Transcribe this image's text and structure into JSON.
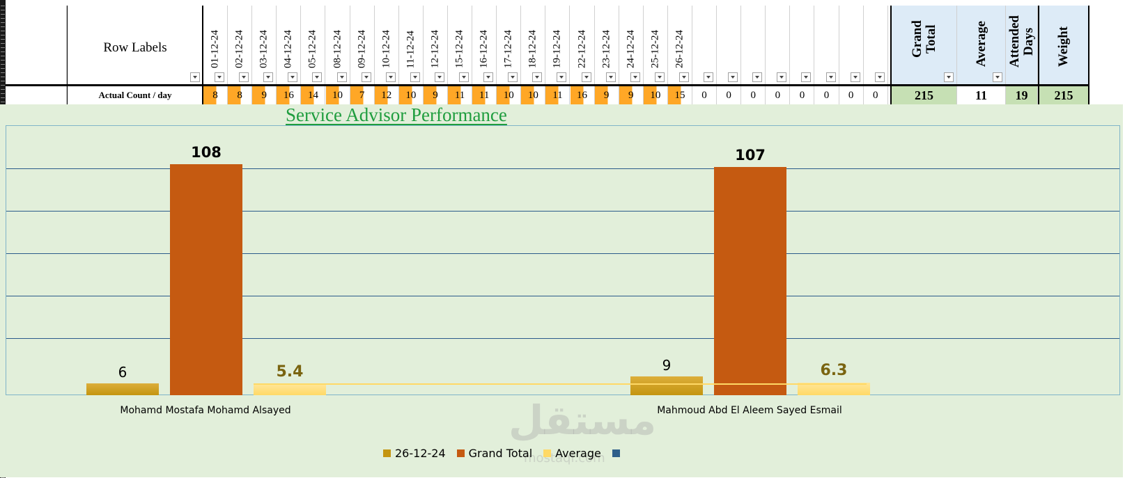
{
  "pivot": {
    "row_labels_title": "Row Labels",
    "dates": [
      "01-12-24",
      "02-12-24",
      "03-12-24",
      "04-12-24",
      "05-12-24",
      "08-12-24",
      "09-12-24",
      "10-12-24",
      "11-12-24",
      "12-12-24",
      "15-12-24",
      "16-12-24",
      "17-12-24",
      "18-12-24",
      "19-12-24",
      "22-12-24",
      "23-12-24",
      "24-12-24",
      "25-12-24",
      "26-12-24"
    ],
    "empty_columns": 8,
    "summary_headers": {
      "grand_total": "Grand Total",
      "average": "Average",
      "attended_days": "Attended Days",
      "weight": "Weight"
    },
    "row": {
      "label": "Actual Count / day",
      "values": [
        "8",
        "8",
        "9",
        "16",
        "14",
        "10",
        "7",
        "12",
        "10",
        "9",
        "11",
        "11",
        "10",
        "10",
        "11",
        "16",
        "9",
        "9",
        "10",
        "15"
      ],
      "empty_values": [
        "0",
        "0",
        "0",
        "0",
        "0",
        "0",
        "0",
        "0"
      ],
      "grand_total": "215",
      "average": "11",
      "attended_days": "19",
      "weight": "215"
    },
    "colors": {
      "highlight": "#ffa726",
      "total": "#c6e0b4",
      "header": "#ddebf7"
    }
  },
  "chart_data": {
    "type": "bar",
    "title": "Service Advisor Performance",
    "categories": [
      "Mohamd Mostafa Mohamd Alsayed",
      "Mahmoud Abd El Aleem Sayed Esmail"
    ],
    "series": [
      {
        "name": "26-12-24",
        "values": [
          6,
          9
        ],
        "color": "#d4a017"
      },
      {
        "name": "Grand Total",
        "values": [
          108,
          107
        ],
        "color": "#c55a11"
      },
      {
        "name": "Average",
        "values": [
          5.4,
          6.3
        ],
        "color": "#ffd966"
      }
    ],
    "value_labels": {
      "26-12-24": [
        "6",
        "9"
      ],
      "Grand Total": [
        "108",
        "107"
      ],
      "Average": [
        "5.4",
        "6.3"
      ]
    },
    "ylim": [
      0,
      126
    ],
    "grid": true,
    "legend_position": "bottom",
    "legend_extra_color": "#2e5f8a"
  },
  "watermark": {
    "text": "مستقل",
    "sub": "mostaql.com"
  }
}
